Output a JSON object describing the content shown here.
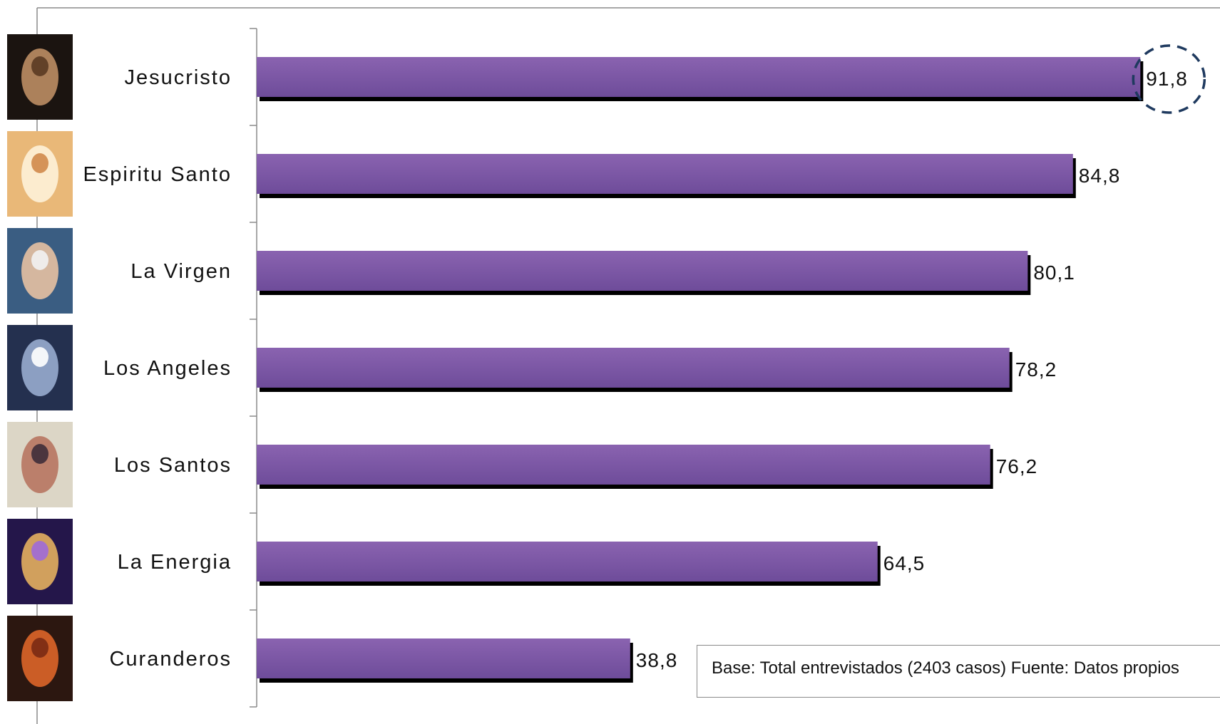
{
  "chart_data": {
    "type": "bar",
    "orientation": "horizontal",
    "categories": [
      "Jesucristo",
      "Espiritu Santo",
      "La Virgen",
      "Los Angeles",
      "Los Santos",
      "La Energia",
      "Curanderos"
    ],
    "values": [
      91.8,
      84.8,
      80.1,
      78.2,
      76.2,
      64.5,
      38.8
    ],
    "value_labels": [
      "91,8",
      "84,8",
      "80,1",
      "78,2",
      "76,2",
      "64,5",
      "38,8"
    ],
    "xlim": [
      0,
      100
    ],
    "grid": false,
    "legend": "none",
    "highlight": {
      "category": "Jesucristo",
      "style": "dashed-circle"
    },
    "colors": {
      "bar_top": "#8a63b0",
      "bar_bottom": "#6e4c9a",
      "bar_shadow": "#000000",
      "highlight_circle": "#1f3a5f",
      "axis": "#8a8a8a"
    },
    "icons": [
      "crucifix-icon",
      "holy-spirit-dove-icon",
      "virgin-mary-icon",
      "angel-icon",
      "saint-icon",
      "energy-hands-icon",
      "healers-icon"
    ]
  },
  "footnote": "Base: Total entrevistados (2403 casos)  Fuente: Datos propios"
}
